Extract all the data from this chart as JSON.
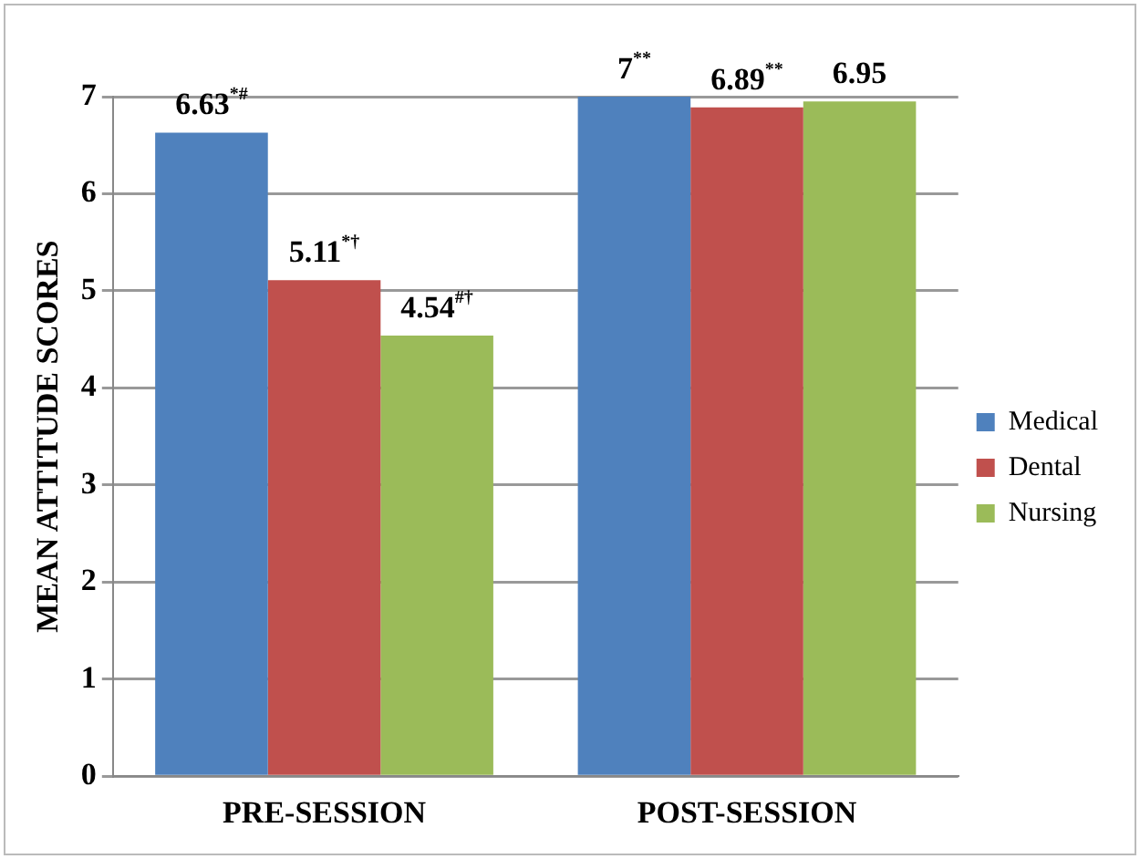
{
  "chart_data": {
    "type": "bar",
    "ylabel": "MEAN ATTITUDE SCORES",
    "categories": [
      "PRE-SESSION",
      "POST-SESSION"
    ],
    "series": [
      {
        "name": "Medical",
        "color": "#4f81bd",
        "values": [
          6.63,
          7
        ],
        "value_labels": [
          "6.63$^{*#}$",
          "7$^{**}$"
        ]
      },
      {
        "name": "Dental",
        "color": "#c0504d",
        "values": [
          5.11,
          6.89
        ],
        "value_labels": [
          "5.11$^{*†}$",
          "6.89$^{**}$"
        ]
      },
      {
        "name": "Nursing",
        "color": "#9bbb59",
        "values": [
          4.54,
          6.95
        ],
        "value_labels": [
          "4.54$^{#†}$",
          "6.95"
        ]
      }
    ],
    "ylim": [
      0,
      7
    ],
    "yticks": [
      0,
      1,
      2,
      3,
      4,
      5,
      6,
      7
    ],
    "grid": "y",
    "legend": "right"
  }
}
